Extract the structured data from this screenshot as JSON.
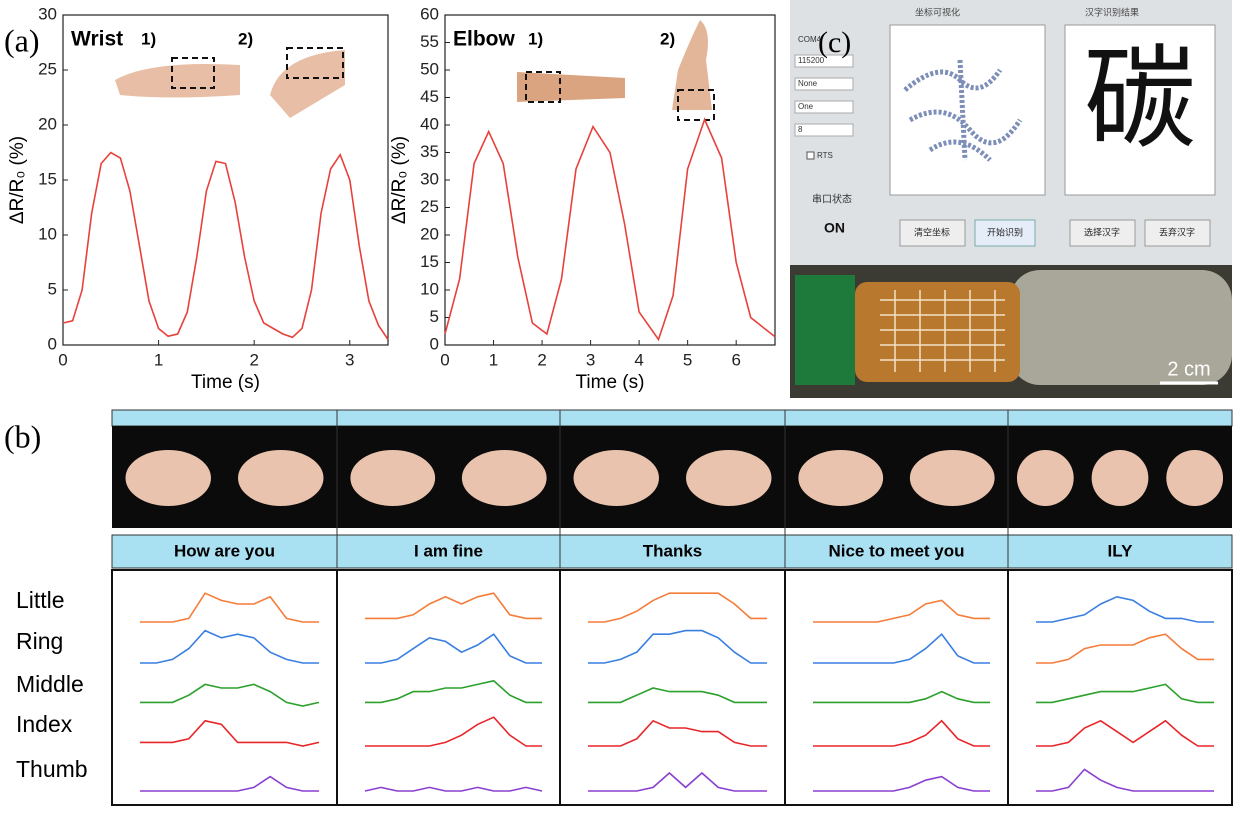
{
  "panel_a_label": "(a)",
  "chart_data": [
    {
      "type": "line",
      "title": "Wrist",
      "annotations": [
        "1)",
        "2)"
      ],
      "xlabel": "Time (s)",
      "ylabel": "ΔR/R₀ (%)",
      "x": [
        0,
        0.1,
        0.2,
        0.3,
        0.4,
        0.5,
        0.6,
        0.7,
        0.8,
        0.9,
        1.0,
        1.1,
        1.2,
        1.3,
        1.4,
        1.5,
        1.6,
        1.7,
        1.8,
        1.9,
        2.0,
        2.1,
        2.2,
        2.3,
        2.4,
        2.5,
        2.6,
        2.7,
        2.8,
        2.9,
        3.0,
        3.1,
        3.2,
        3.3,
        3.4
      ],
      "series": [
        {
          "color": "#e8413c",
          "values": [
            2,
            2.2,
            5,
            12,
            16.5,
            17.5,
            17,
            14,
            9,
            4,
            1.5,
            0.8,
            1,
            3,
            8,
            14,
            16.7,
            16.5,
            13,
            8,
            4,
            2,
            1.5,
            1,
            0.7,
            1.5,
            5,
            12,
            16,
            17.3,
            15,
            9,
            4,
            1.8,
            0.5
          ]
        }
      ],
      "xlim": [
        0,
        3.4
      ],
      "ylim": [
        0,
        30
      ],
      "xticks": [
        0,
        1,
        2,
        3
      ],
      "yticks": [
        0,
        5,
        10,
        15,
        20,
        25,
        30
      ]
    },
    {
      "type": "line",
      "title": "Elbow",
      "annotations": [
        "1)",
        "2)"
      ],
      "xlabel": "Time (s)",
      "ylabel": "ΔR/R₀ (%)",
      "x": [
        0,
        0.3,
        0.6,
        0.9,
        1.2,
        1.5,
        1.8,
        2.1,
        2.4,
        2.7,
        3.05,
        3.4,
        3.7,
        4.0,
        4.4,
        4.7,
        5.0,
        5.35,
        5.7,
        6.0,
        6.3,
        6.8
      ],
      "series": [
        {
          "color": "#e8413c",
          "values": [
            2,
            12,
            33,
            38.8,
            33,
            16,
            4,
            2,
            12,
            32,
            39.7,
            35,
            22,
            6,
            1,
            9,
            32,
            41,
            34,
            15,
            5,
            1.5
          ]
        }
      ],
      "xlim": [
        0,
        6.8
      ],
      "ylim": [
        0,
        60
      ],
      "xticks": [
        0,
        1,
        2,
        3,
        4,
        5,
        6
      ],
      "yticks": [
        0,
        5,
        10,
        15,
        20,
        25,
        30,
        35,
        40,
        45,
        50,
        55,
        60
      ]
    }
  ],
  "panel_b": {
    "label": "(b)",
    "fingers": [
      "Little",
      "Ring",
      "Middle",
      "Index",
      "Thumb"
    ],
    "ylim": [
      0,
      10
    ],
    "gestures": [
      {
        "label": "How are you",
        "series": [
          {
            "color": "#f57c3a",
            "values": [
              0,
              0,
              0,
              1,
              8,
              6,
              5,
              5,
              7,
              1,
              0,
              0
            ]
          },
          {
            "color": "#3a7fe0",
            "values": [
              0,
              0,
              1,
              4,
              9,
              7,
              8,
              7,
              3,
              1,
              0,
              0
            ]
          },
          {
            "color": "#2ca02c",
            "values": [
              1,
              1,
              1,
              3,
              6,
              5,
              5,
              6,
              4,
              1,
              0,
              1
            ]
          },
          {
            "color": "#e8262a",
            "values": [
              1,
              1,
              1,
              2,
              7,
              6,
              1,
              1,
              1,
              1,
              0,
              1
            ]
          },
          {
            "color": "#8a3fd1",
            "values": [
              0,
              0,
              0,
              0,
              0,
              0,
              0,
              1,
              4,
              1,
              0,
              0
            ]
          }
        ]
      },
      {
        "label": "I am fine",
        "series": [
          {
            "color": "#f57c3a",
            "values": [
              1,
              1,
              1,
              2,
              5,
              7,
              5,
              7,
              8,
              2,
              1,
              1
            ]
          },
          {
            "color": "#3a7fe0",
            "values": [
              0,
              0,
              1,
              4,
              7,
              6,
              3,
              5,
              8,
              2,
              0,
              0
            ]
          },
          {
            "color": "#2ca02c",
            "values": [
              1,
              1,
              2,
              4,
              4,
              5,
              5,
              6,
              7,
              3,
              1,
              1
            ]
          },
          {
            "color": "#e8262a",
            "values": [
              0,
              0,
              0,
              0,
              0,
              1,
              3,
              6,
              8,
              3,
              0,
              0
            ]
          },
          {
            "color": "#8a3fd1",
            "values": [
              0,
              1,
              0,
              0,
              1,
              0,
              0,
              1,
              0,
              0,
              1,
              0
            ]
          }
        ]
      },
      {
        "label": "Thanks",
        "series": [
          {
            "color": "#f57c3a",
            "values": [
              0,
              0,
              1,
              3,
              6,
              8,
              8,
              8,
              8,
              5,
              1,
              1
            ]
          },
          {
            "color": "#3a7fe0",
            "values": [
              0,
              0,
              1,
              3,
              8,
              8,
              9,
              9,
              7,
              3,
              0,
              0
            ]
          },
          {
            "color": "#2ca02c",
            "values": [
              1,
              1,
              1,
              3,
              5,
              4,
              4,
              4,
              3,
              1,
              1,
              1
            ]
          },
          {
            "color": "#e8262a",
            "values": [
              0,
              0,
              0,
              2,
              7,
              5,
              5,
              4,
              4,
              1,
              0,
              0
            ]
          },
          {
            "color": "#8a3fd1",
            "values": [
              0,
              0,
              0,
              0,
              1,
              5,
              1,
              5,
              1,
              0,
              0,
              0
            ]
          }
        ]
      },
      {
        "label": "Nice to meet you",
        "series": [
          {
            "color": "#f57c3a",
            "values": [
              0,
              0,
              0,
              0,
              0,
              1,
              2,
              5,
              6,
              2,
              1,
              1
            ]
          },
          {
            "color": "#3a7fe0",
            "values": [
              0,
              0,
              0,
              0,
              0,
              0,
              1,
              4,
              8,
              2,
              0,
              0
            ]
          },
          {
            "color": "#2ca02c",
            "values": [
              1,
              1,
              1,
              1,
              1,
              1,
              1,
              2,
              4,
              2,
              1,
              1
            ]
          },
          {
            "color": "#e8262a",
            "values": [
              0,
              0,
              0,
              0,
              0,
              0,
              1,
              3,
              7,
              2,
              0,
              0
            ]
          },
          {
            "color": "#8a3fd1",
            "values": [
              0,
              0,
              0,
              0,
              0,
              0,
              1,
              3,
              4,
              1,
              0,
              0
            ]
          }
        ]
      },
      {
        "label": "ILY",
        "series": [
          {
            "color": "#3a7fe0",
            "values": [
              0,
              0,
              1,
              2,
              5,
              7,
              6,
              3,
              1,
              1,
              0,
              0
            ]
          },
          {
            "color": "#f57c3a",
            "values": [
              0,
              0,
              1,
              4,
              5,
              5,
              5,
              7,
              8,
              4,
              1,
              1
            ]
          },
          {
            "color": "#2ca02c",
            "values": [
              1,
              1,
              2,
              3,
              4,
              4,
              4,
              5,
              6,
              2,
              1,
              1
            ]
          },
          {
            "color": "#e8262a",
            "values": [
              0,
              0,
              1,
              5,
              7,
              4,
              1,
              4,
              7,
              3,
              0,
              0
            ]
          },
          {
            "color": "#8a3fd1",
            "values": [
              0,
              0,
              1,
              6,
              3,
              1,
              0,
              0,
              0,
              0,
              0,
              0
            ]
          }
        ]
      }
    ]
  },
  "panel_c": {
    "label": "(c)",
    "left_title": "坐标可视化",
    "right_title": "汉字识别结果",
    "settings": [
      "COM4",
      "115200",
      "None",
      "One",
      "8"
    ],
    "checkbox": "RTS",
    "status_label": "串口状态",
    "status": "ON",
    "character": "碳",
    "buttons": [
      "清空坐标",
      "开始识别",
      "选择汉字",
      "丢弃汉字"
    ],
    "scale_bar": "2 cm"
  }
}
